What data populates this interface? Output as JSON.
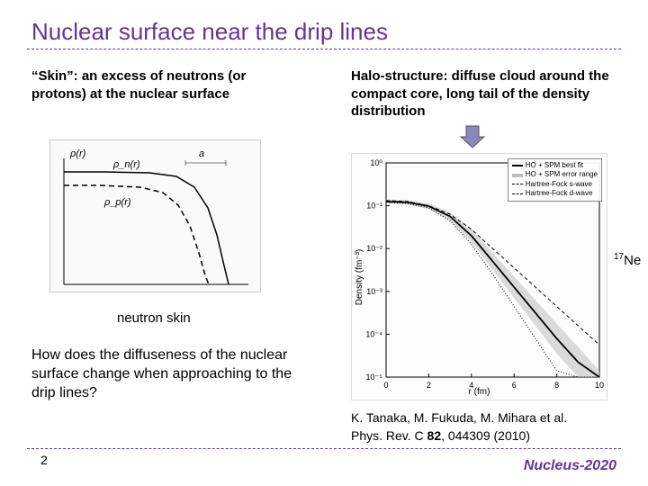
{
  "title": "Nuclear surface near the drip lines",
  "left_description": "“Skin”: an excess of neutrons (or protons) at the nuclear surface",
  "right_description": "Halo-structure: diffuse cloud around the compact core, long tail of the density distribution",
  "neutron_skin_label": "neutron skin",
  "isotope_mass": "17",
  "isotope_symbol": "Ne",
  "question": "How does the diffuseness of the nuclear surface change when approaching to the drip lines?",
  "citation_authors": "K. Tanaka, M. Fukuda, M. Mihara et al.",
  "citation_ref_prefix": "Phys. Rev. C ",
  "citation_volume": "82",
  "citation_ref_suffix": ", 044309 (2010)",
  "page_number": "2",
  "conference": "Nucleus-2020",
  "left_chart": {
    "type": "line-schematic",
    "labels": {
      "y": "ρ(r)",
      "rho_n": "ρ_n(r)",
      "rho_p": "ρ_p(r)",
      "a": "a"
    },
    "curves": {
      "neutron": {
        "color": "#000000",
        "width": 1.5,
        "dash": "none",
        "points": [
          [
            15,
            35
          ],
          [
            60,
            35
          ],
          [
            110,
            36
          ],
          [
            140,
            40
          ],
          [
            160,
            52
          ],
          [
            175,
            75
          ],
          [
            185,
            105
          ],
          [
            192,
            135
          ],
          [
            198,
            160
          ]
        ]
      },
      "proton": {
        "color": "#000000",
        "width": 1.5,
        "dash": "6,4",
        "points": [
          [
            15,
            50
          ],
          [
            55,
            50
          ],
          [
            100,
            52
          ],
          [
            125,
            58
          ],
          [
            142,
            72
          ],
          [
            155,
            95
          ],
          [
            165,
            125
          ],
          [
            172,
            150
          ],
          [
            176,
            160
          ]
        ]
      }
    },
    "axis_color": "#000000",
    "font_size": 11
  },
  "right_chart": {
    "type": "line-semilog",
    "xlabel": "r (fm)",
    "ylabel": "Density (fm⁻³)",
    "xlim": [
      0,
      10
    ],
    "xtick_step": 2,
    "ylim_exp": [
      -5,
      0
    ],
    "ytick_exp_step": 1,
    "background": "#ffffff",
    "axis_color": "#000000",
    "font_size": 10,
    "legend": [
      {
        "label": "HO + SPM best fit",
        "color": "#000000",
        "width": 2,
        "dash": "none"
      },
      {
        "label": "HO + SPM error range",
        "color": "#bbbbbb",
        "width": 6,
        "dash": "none"
      },
      {
        "label": "Hartree-Fock s-wave",
        "color": "#000000",
        "width": 1,
        "dash": "4,3"
      },
      {
        "label": "Hartree-Fock d-wave",
        "color": "#000000",
        "width": 1,
        "dash": "1,2"
      }
    ],
    "series": {
      "band": {
        "color": "#cccccc",
        "upper": [
          [
            0,
            -0.85
          ],
          [
            1,
            -0.87
          ],
          [
            2,
            -0.95
          ],
          [
            3,
            -1.15
          ],
          [
            4,
            -1.55
          ],
          [
            5,
            -2.1
          ],
          [
            6,
            -2.65
          ],
          [
            7,
            -3.2
          ],
          [
            8,
            -3.75
          ],
          [
            9,
            -4.3
          ],
          [
            10,
            -4.85
          ]
        ],
        "lower": [
          [
            0,
            -0.95
          ],
          [
            1,
            -0.97
          ],
          [
            2,
            -1.08
          ],
          [
            3,
            -1.35
          ],
          [
            4,
            -1.85
          ],
          [
            5,
            -2.5
          ],
          [
            6,
            -3.15
          ],
          [
            7,
            -3.8
          ],
          [
            8,
            -4.45
          ],
          [
            9,
            -5.0
          ],
          [
            10,
            -5.0
          ]
        ]
      },
      "bestfit": {
        "color": "#000000",
        "width": 1.8,
        "dash": "none",
        "points": [
          [
            0,
            -0.9
          ],
          [
            1,
            -0.92
          ],
          [
            2,
            -1.01
          ],
          [
            3,
            -1.25
          ],
          [
            4,
            -1.7
          ],
          [
            5,
            -2.3
          ],
          [
            6,
            -2.9
          ],
          [
            7,
            -3.5
          ],
          [
            8,
            -4.1
          ],
          [
            9,
            -4.65
          ],
          [
            10,
            -5.0
          ]
        ]
      },
      "swave": {
        "color": "#000000",
        "width": 1,
        "dash": "4,3",
        "points": [
          [
            0,
            -0.88
          ],
          [
            1,
            -0.9
          ],
          [
            2,
            -1.0
          ],
          [
            3,
            -1.2
          ],
          [
            4,
            -1.55
          ],
          [
            5,
            -2.0
          ],
          [
            6,
            -2.45
          ],
          [
            7,
            -2.9
          ],
          [
            8,
            -3.35
          ],
          [
            9,
            -3.8
          ],
          [
            10,
            -4.25
          ]
        ]
      },
      "dwave": {
        "color": "#000000",
        "width": 1,
        "dash": "1,2",
        "points": [
          [
            0,
            -0.92
          ],
          [
            1,
            -0.95
          ],
          [
            2,
            -1.05
          ],
          [
            3,
            -1.35
          ],
          [
            4,
            -1.9
          ],
          [
            5,
            -2.6
          ],
          [
            6,
            -3.35
          ],
          [
            7,
            -4.1
          ],
          [
            8,
            -4.85
          ],
          [
            9,
            -5.0
          ],
          [
            10,
            -5.0
          ]
        ]
      }
    }
  },
  "colors": {
    "accent": "#663399",
    "text": "#000000"
  }
}
